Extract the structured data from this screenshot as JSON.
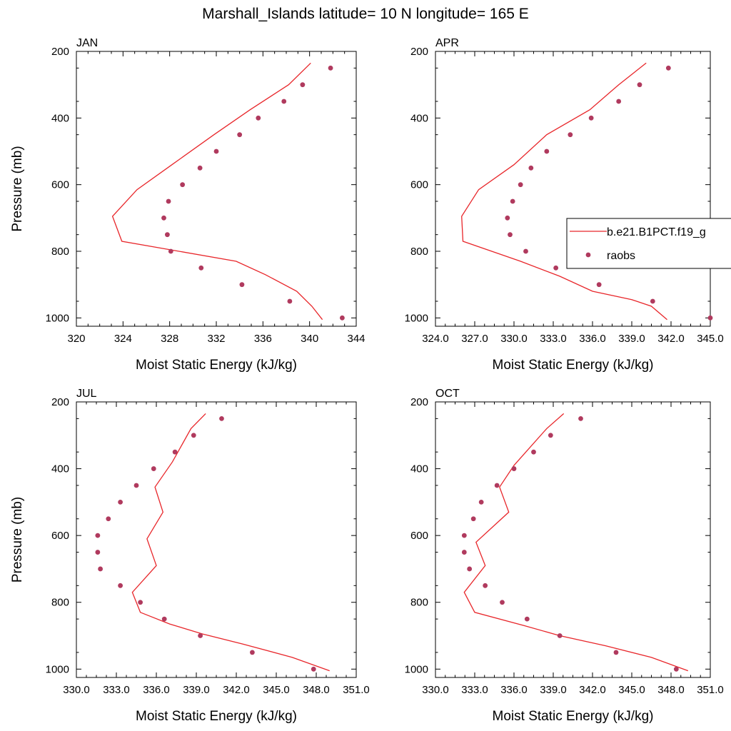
{
  "figure": {
    "title": "Marshall_Islands  latitude= 10 N longitude= 165 E",
    "colors": {
      "model_line": "#e8262a",
      "obs_points": "#b03a5e"
    }
  },
  "legend": {
    "entries": [
      {
        "label": "b.e21.B1PCT.f19_g",
        "style": "line"
      },
      {
        "label": "raobs",
        "style": "marker"
      }
    ],
    "placement": "right of APR panel (cut off)"
  },
  "chart_data": [
    {
      "type": "line",
      "panel": "JAN",
      "title": "JAN",
      "xlabel": "Moist Static Energy (kJ/kg)",
      "ylabel": "Pressure (mb)",
      "xlim": [
        320,
        344
      ],
      "ylim": [
        1025,
        200
      ],
      "xticks": [
        "320",
        "324",
        "328",
        "332",
        "336",
        "340",
        "344"
      ],
      "yticks": [
        "200",
        "400",
        "600",
        "800",
        "1000"
      ],
      "series": [
        {
          "name": "b.e21.B1PCT.f19_g",
          "style": "line",
          "x": [
            341.1,
            340.2,
            338.9,
            336.2,
            333.7,
            323.9,
            323.1,
            325.2,
            328.2,
            331.8,
            334.9,
            338.2,
            340.1
          ],
          "y": [
            1005,
            965,
            920,
            870,
            830,
            770,
            695,
            615,
            540,
            450,
            375,
            300,
            235
          ]
        },
        {
          "name": "raobs",
          "style": "marker",
          "x": [
            342.8,
            338.3,
            334.2,
            330.7,
            328.1,
            327.8,
            327.5,
            327.9,
            329.1,
            330.6,
            332.0,
            334.0,
            335.6,
            337.8,
            339.4,
            341.8
          ],
          "y": [
            1000,
            950,
            900,
            850,
            800,
            750,
            700,
            650,
            600,
            550,
            500,
            450,
            400,
            350,
            300,
            250
          ]
        }
      ]
    },
    {
      "type": "line",
      "panel": "APR",
      "title": "APR",
      "xlabel": "Moist Static Energy (kJ/kg)",
      "ylabel": "",
      "xlim": [
        324,
        345
      ],
      "ylim": [
        1025,
        200
      ],
      "xticks": [
        "324.0",
        "327.0",
        "330.0",
        "333.0",
        "336.0",
        "339.0",
        "342.0",
        "345.0"
      ],
      "yticks": [
        "200",
        "400",
        "600",
        "800",
        "1000"
      ],
      "series": [
        {
          "name": "b.e21.B1PCT.f19_g",
          "style": "line",
          "x": [
            341.7,
            340.5,
            339.0,
            336.0,
            333.5,
            330.5,
            326.1,
            326.0,
            327.3,
            330.0,
            332.5,
            335.8,
            338.0,
            340.1
          ],
          "y": [
            1005,
            965,
            945,
            920,
            875,
            830,
            770,
            695,
            615,
            540,
            450,
            375,
            300,
            235
          ]
        },
        {
          "name": "raobs",
          "style": "marker",
          "x": [
            345.0,
            340.6,
            336.5,
            333.2,
            330.9,
            329.7,
            329.5,
            329.9,
            330.5,
            331.3,
            332.5,
            334.3,
            335.9,
            338.0,
            339.6,
            341.8
          ],
          "y": [
            1000,
            950,
            900,
            850,
            800,
            750,
            700,
            650,
            600,
            550,
            500,
            450,
            400,
            350,
            300,
            250
          ]
        }
      ]
    },
    {
      "type": "line",
      "panel": "JUL",
      "title": "JUL",
      "xlabel": "Moist Static Energy (kJ/kg)",
      "ylabel": "Pressure (mb)",
      "xlim": [
        330,
        351
      ],
      "ylim": [
        1025,
        200
      ],
      "xticks": [
        "330.0",
        "333.0",
        "336.0",
        "339.0",
        "342.0",
        "345.0",
        "348.0",
        "351.0"
      ],
      "yticks": [
        "200",
        "400",
        "600",
        "800",
        "1000"
      ],
      "series": [
        {
          "name": "b.e21.B1PCT.f19_g",
          "style": "line",
          "x": [
            349.0,
            346.2,
            342.5,
            339.5,
            337.0,
            334.8,
            334.2,
            336.0,
            335.3,
            336.5,
            335.9,
            337.2,
            338.6,
            339.7
          ],
          "y": [
            1005,
            965,
            925,
            895,
            865,
            830,
            770,
            690,
            610,
            530,
            455,
            380,
            280,
            235
          ]
        },
        {
          "name": "raobs",
          "style": "marker",
          "x": [
            347.8,
            343.2,
            339.3,
            336.6,
            334.8,
            333.3,
            331.8,
            331.6,
            331.6,
            332.4,
            333.3,
            334.5,
            335.8,
            337.4,
            338.8,
            340.9
          ],
          "y": [
            1000,
            950,
            900,
            850,
            800,
            750,
            700,
            650,
            600,
            550,
            500,
            450,
            400,
            350,
            300,
            250
          ]
        }
      ]
    },
    {
      "type": "line",
      "panel": "OCT",
      "title": "OCT",
      "xlabel": "Moist Static Energy (kJ/kg)",
      "ylabel": "",
      "xlim": [
        330,
        351
      ],
      "ylim": [
        1025,
        200
      ],
      "xticks": [
        "330.0",
        "333.0",
        "336.0",
        "339.0",
        "342.0",
        "345.0",
        "348.0",
        "351.0"
      ],
      "yticks": [
        "200",
        "400",
        "600",
        "800",
        "1000"
      ],
      "series": [
        {
          "name": "b.e21.B1PCT.f19_g",
          "style": "line",
          "x": [
            349.3,
            346.5,
            343.0,
            339.5,
            336.8,
            333.0,
            332.2,
            333.8,
            333.1,
            335.6,
            334.9,
            336.0,
            338.5,
            339.8
          ],
          "y": [
            1005,
            965,
            930,
            900,
            870,
            830,
            770,
            690,
            620,
            530,
            455,
            390,
            280,
            235
          ]
        },
        {
          "name": "raobs",
          "style": "marker",
          "x": [
            348.4,
            343.8,
            339.5,
            337.0,
            335.1,
            333.8,
            332.6,
            332.2,
            332.2,
            332.9,
            333.5,
            334.7,
            336.0,
            337.5,
            338.8,
            341.1
          ],
          "y": [
            1000,
            950,
            900,
            850,
            800,
            750,
            700,
            650,
            600,
            550,
            500,
            450,
            400,
            350,
            300,
            250
          ]
        }
      ]
    }
  ]
}
